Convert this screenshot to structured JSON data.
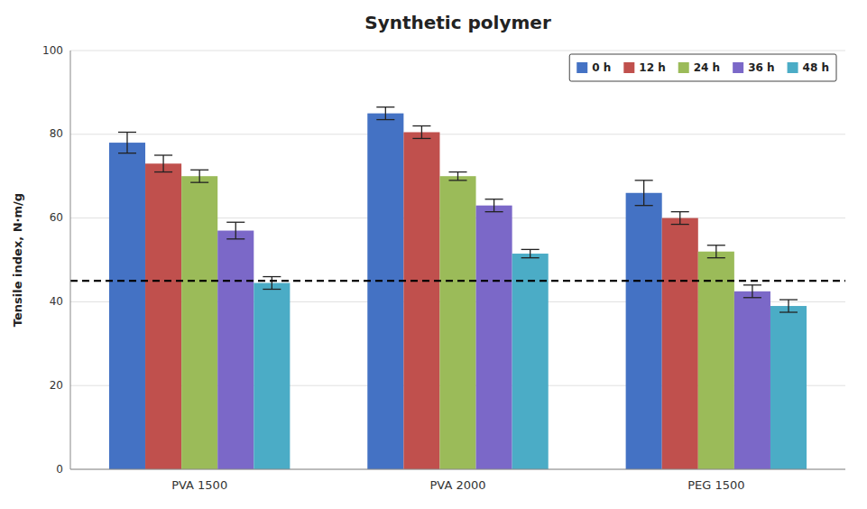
{
  "chart_data": {
    "type": "bar",
    "title": "Synthetic polymer",
    "ylabel": "Tensile index, N·m/g",
    "categories": [
      "PVA 1500",
      "PVA 2000",
      "PEG 1500"
    ],
    "series": [
      {
        "name": "0 h",
        "color": "#4472C4",
        "values": [
          78.0,
          85.0,
          66.0
        ],
        "errors": [
          2.5,
          1.5,
          3.0
        ]
      },
      {
        "name": "12 h",
        "color": "#C0504D",
        "values": [
          73.0,
          80.5,
          60.0
        ],
        "errors": [
          2.0,
          1.5,
          1.5
        ]
      },
      {
        "name": "24 h",
        "color": "#9BBB59",
        "values": [
          70.0,
          70.0,
          52.0
        ],
        "errors": [
          1.5,
          1.0,
          1.5
        ]
      },
      {
        "name": "36 h",
        "color": "#7B68C8",
        "values": [
          57.0,
          63.0,
          42.5
        ],
        "errors": [
          2.0,
          1.5,
          1.5
        ]
      },
      {
        "name": "48 h",
        "color": "#4BACC6",
        "values": [
          44.5,
          51.5,
          39.0
        ],
        "errors": [
          1.5,
          1.0,
          1.5
        ]
      }
    ],
    "reference_line": 45,
    "ylim": [
      0,
      100
    ],
    "yticks": [
      0,
      20,
      40,
      60,
      80,
      100
    ],
    "grid": true,
    "legend": "upper right"
  }
}
